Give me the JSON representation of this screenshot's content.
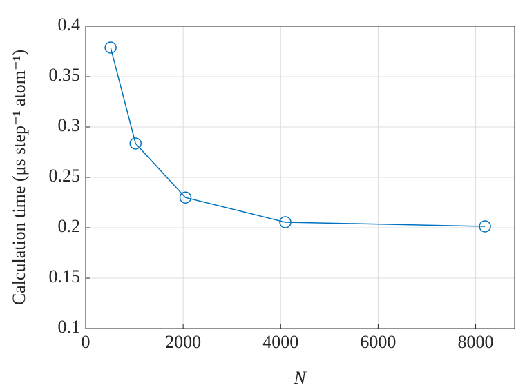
{
  "chart_data": {
    "type": "line",
    "x_label": "N",
    "y_label": "Calculation time (μs step⁻¹ atom⁻¹)",
    "x": [
      512,
      1024,
      2048,
      4096,
      8192
    ],
    "series": [
      {
        "name": "Calculation time",
        "color": "#0072bd",
        "values": [
          0.3788,
          0.2836,
          0.23,
          0.2055,
          0.2014
        ]
      }
    ],
    "xlim": [
      0,
      8800
    ],
    "xticks": [
      0,
      2000,
      4000,
      6000,
      8000
    ],
    "ylim": [
      0.1,
      0.4
    ],
    "yticks": [
      0.1,
      0.15,
      0.2,
      0.25,
      0.3,
      0.35,
      0.4
    ],
    "grid": true,
    "marker": "circle"
  }
}
